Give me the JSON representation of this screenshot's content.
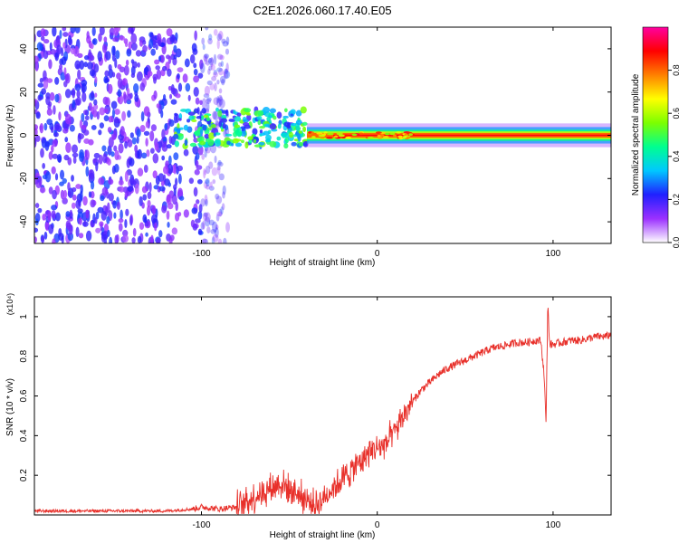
{
  "figure_title": "C2E1.2026.060.17.40.E05",
  "chart_data": [
    {
      "type": "heatmap",
      "panel": "spectrogram",
      "xlabel": "Height of straight line (km)",
      "ylabel": "Frequency (Hz)",
      "xlim": [
        -195,
        133
      ],
      "ylim": [
        -50,
        50
      ],
      "xticks": [
        -100,
        0,
        100
      ],
      "xtick_labels": [
        "-100",
        "0",
        "100"
      ],
      "yticks": [
        -40,
        -20,
        0,
        20,
        40
      ],
      "ytick_labels": [
        "-40",
        "-20",
        "0",
        "20",
        "40"
      ],
      "colorbar": {
        "label": "Normalized spectral amplitude",
        "range": [
          0.0,
          1.0
        ],
        "ticks": [
          0.0,
          0.2,
          0.4,
          0.6,
          0.8
        ],
        "tick_labels": [
          "0.0",
          "0.2",
          "0.4",
          "0.6",
          "0.8"
        ],
        "colormap": [
          "#ffffff",
          "#9b30ff",
          "#2020ff",
          "#00c8ff",
          "#00ff90",
          "#7cff00",
          "#ffff00",
          "#ff8000",
          "#ff0000",
          "#ff00a0"
        ]
      },
      "features": [
        {
          "x_range": [
            -195,
            -85
          ],
          "freq_range": [
            -50,
            50
          ],
          "amplitude": 0.15,
          "description": "broadband noise"
        },
        {
          "x_range": [
            -115,
            -40
          ],
          "freq_range": [
            -5,
            12
          ],
          "amplitude": 0.45,
          "description": "onset cluster"
        },
        {
          "x_range": [
            -40,
            133
          ],
          "freq_range": [
            -2,
            2
          ],
          "amplitude": 0.9,
          "description": "narrow band near 0 Hz"
        }
      ]
    },
    {
      "type": "line",
      "panel": "snr",
      "xlabel": "Height of straight line (km)",
      "ylabel": "SNR (10 * v/v)",
      "y_multiplier": "(x10⁴)",
      "xlim": [
        -195,
        133
      ],
      "ylim": [
        0,
        1.1
      ],
      "xticks": [
        -100,
        0,
        100
      ],
      "xtick_labels": [
        "-100",
        "0",
        "100"
      ],
      "yticks": [
        0.2,
        0.4,
        0.6,
        0.8,
        1.0
      ],
      "ytick_labels": [
        "0.2",
        "0.4",
        "0.6",
        "0.8",
        "1"
      ],
      "series": [
        {
          "name": "SNR",
          "color": "#e8302a",
          "x": [
            -195,
            -160,
            -120,
            -105,
            -100,
            -90,
            -80,
            -70,
            -60,
            -55,
            -50,
            -45,
            -40,
            -35,
            -30,
            -25,
            -20,
            -15,
            -10,
            -5,
            0,
            5,
            10,
            15,
            20,
            25,
            30,
            35,
            40,
            45,
            50,
            55,
            60,
            65,
            70,
            75,
            80,
            85,
            90,
            93,
            95,
            96,
            97,
            98,
            100,
            105,
            110,
            115,
            120,
            125,
            130,
            133
          ],
          "y": [
            0.02,
            0.02,
            0.02,
            0.03,
            0.04,
            0.03,
            0.04,
            0.09,
            0.14,
            0.16,
            0.13,
            0.11,
            0.07,
            0.05,
            0.09,
            0.14,
            0.18,
            0.22,
            0.27,
            0.31,
            0.34,
            0.36,
            0.42,
            0.5,
            0.57,
            0.63,
            0.67,
            0.71,
            0.74,
            0.76,
            0.78,
            0.8,
            0.82,
            0.84,
            0.85,
            0.86,
            0.87,
            0.87,
            0.88,
            0.88,
            0.7,
            0.45,
            1.08,
            0.86,
            0.86,
            0.87,
            0.88,
            0.88,
            0.89,
            0.9,
            0.9,
            0.91
          ]
        }
      ]
    }
  ]
}
